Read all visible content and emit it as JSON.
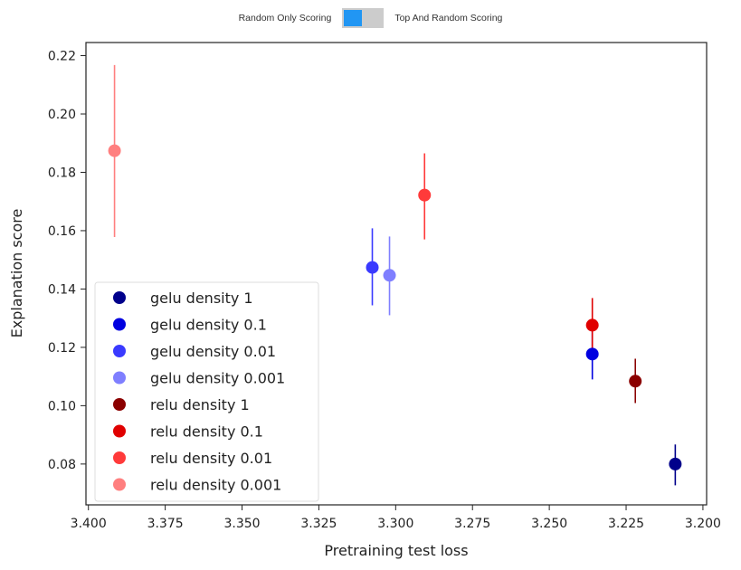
{
  "toggle": {
    "left_label": "Random Only Scoring",
    "right_label": "Top And Random Scoring",
    "state": "left"
  },
  "chart_data": {
    "type": "scatter",
    "xlabel": "Pretraining test loss",
    "ylabel": "Explanation score",
    "xlim": [
      3.4008,
      3.1988
    ],
    "ylim": [
      0.066,
      0.2245
    ],
    "x_reversed": true,
    "xticks": [
      "3.400",
      "3.375",
      "3.350",
      "3.325",
      "3.300",
      "3.275",
      "3.250",
      "3.225",
      "3.200"
    ],
    "yticks": [
      "0.08",
      "0.10",
      "0.12",
      "0.14",
      "0.16",
      "0.18",
      "0.20",
      "0.22"
    ],
    "grid": false,
    "legend_placement": "lower-left",
    "series": [
      {
        "name": "gelu density 1",
        "color": "#00008b",
        "x": 3.209,
        "y": 0.08,
        "err_low": 0.0727,
        "err_high": 0.0867
      },
      {
        "name": "gelu density 0.1",
        "color": "#0000e0",
        "x": 3.236,
        "y": 0.1177,
        "err_low": 0.109,
        "err_high": 0.1267
      },
      {
        "name": "gelu density 0.01",
        "color": "#3a3aff",
        "x": 3.3076,
        "y": 0.1474,
        "err_low": 0.1344,
        "err_high": 0.1608
      },
      {
        "name": "gelu density 0.001",
        "color": "#7f7fff",
        "x": 3.302,
        "y": 0.1447,
        "err_low": 0.131,
        "err_high": 0.158
      },
      {
        "name": "relu density 1",
        "color": "#8b0000",
        "x": 3.222,
        "y": 0.1084,
        "err_low": 0.1009,
        "err_high": 0.1161
      },
      {
        "name": "relu density 0.1",
        "color": "#e00000",
        "x": 3.236,
        "y": 0.1276,
        "err_low": 0.1177,
        "err_high": 0.1369
      },
      {
        "name": "relu density 0.01",
        "color": "#ff3a3a",
        "x": 3.2906,
        "y": 0.1722,
        "err_low": 0.157,
        "err_high": 0.1865
      },
      {
        "name": "relu density 0.001",
        "color": "#ff7f7f",
        "x": 3.3915,
        "y": 0.1874,
        "err_low": 0.1578,
        "err_high": 0.2168
      }
    ]
  }
}
